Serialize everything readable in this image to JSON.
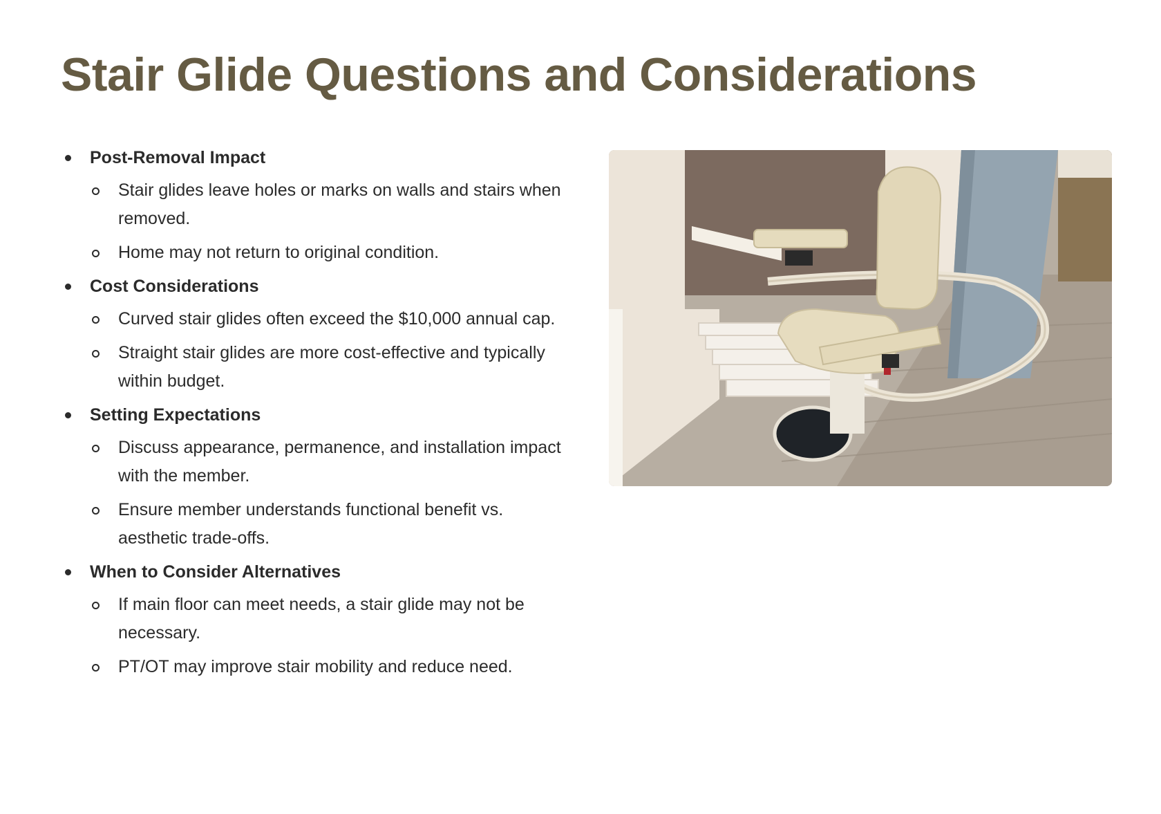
{
  "title": "Stair Glide Questions and Considerations",
  "sections": [
    {
      "heading": "Post-Removal Impact",
      "points": [
        "Stair glides leave holes or marks on walls and stairs when removed.",
        "Home may not return to original condition."
      ]
    },
    {
      "heading": "Cost Considerations",
      "points": [
        "Curved stair glides often exceed the $10,000 annual cap.",
        "Straight stair glides are more cost-effective and typically within budget."
      ]
    },
    {
      "heading": "Setting Expectations",
      "points": [
        "Discuss appearance, permanence, and installation impact with the member.",
        "Ensure member understands functional benefit vs. aesthetic trade-offs."
      ]
    },
    {
      "heading": "When to Consider Alternatives",
      "points": [
        "If main floor can meet needs, a stair glide may not be necessary.",
        "PT/OT may improve stair mobility and reduce need."
      ]
    }
  ],
  "image": {
    "icon": "stair-glide-photo"
  },
  "colors": {
    "title": "#655b43",
    "text": "#2b2b2b"
  }
}
